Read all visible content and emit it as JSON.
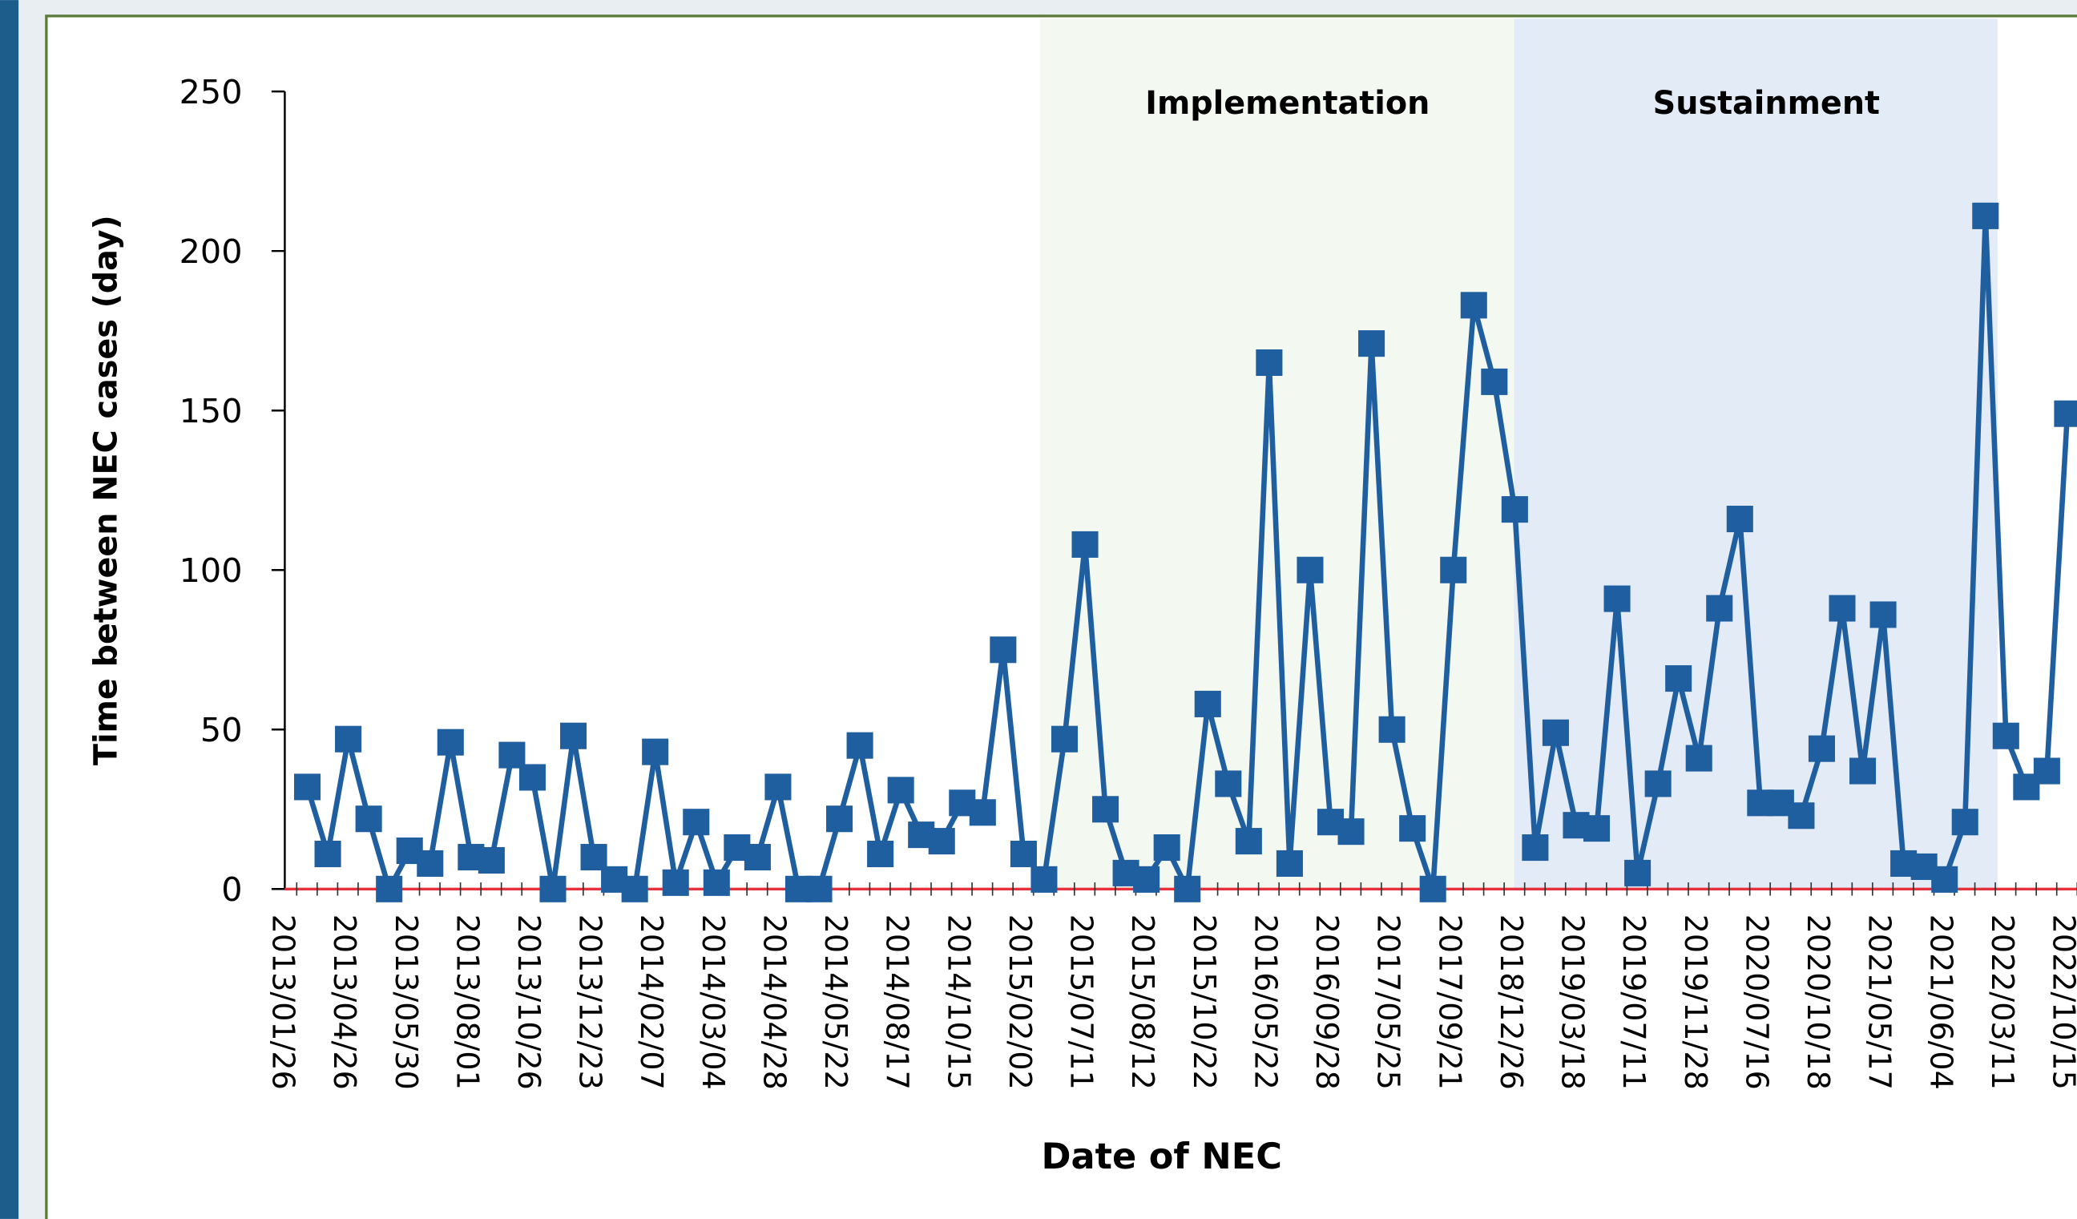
{
  "chart_data": {
    "type": "line",
    "y_label": "Time between NEC cases (day)",
    "x_label": "Date of NEC",
    "phases": [
      "Implementation",
      "Sustainment"
    ],
    "categories": [
      "2013/01/26",
      null,
      null,
      "2013/04/26",
      null,
      null,
      "2013/05/30",
      null,
      null,
      "2013/08/01",
      null,
      null,
      "2013/10/26",
      null,
      null,
      "2013/12/23",
      null,
      null,
      "2014/02/07",
      null,
      null,
      "2014/03/04",
      null,
      null,
      "2014/04/28",
      null,
      null,
      "2014/05/22",
      null,
      null,
      "2014/08/17",
      null,
      null,
      "2014/10/15",
      null,
      null,
      "2015/02/02",
      null,
      null,
      "2015/07/11",
      null,
      null,
      "2015/08/12",
      null,
      null,
      "2015/10/22",
      null,
      null,
      "2016/05/22",
      null,
      null,
      "2016/09/28",
      null,
      null,
      "2017/05/25",
      null,
      null,
      "2017/09/21",
      null,
      null,
      "2018/12/26",
      null,
      null,
      "2019/03/18",
      null,
      null,
      "2019/07/11",
      null,
      null,
      "2019/11/28",
      null,
      null,
      "2020/07/16",
      null,
      null,
      "2020/10/18",
      null,
      null,
      "2021/05/17",
      null,
      null,
      "2021/06/04",
      null,
      null,
      "2022/03/11",
      null,
      null,
      "2022/10/15"
    ],
    "series": [
      {
        "name": "Time between NEC cases",
        "color": "#1f5fa0",
        "values": [
          32,
          11,
          47,
          22,
          0,
          12,
          8,
          46,
          10,
          9,
          42,
          35,
          0,
          48,
          10,
          3,
          0,
          43,
          2,
          21,
          2,
          13,
          10,
          32,
          0,
          0,
          22,
          45,
          11,
          31,
          17,
          15,
          27,
          24,
          75,
          11,
          3,
          47,
          108,
          25,
          5,
          3,
          13,
          0,
          58,
          33,
          15,
          165,
          8,
          100,
          21,
          18,
          171,
          50,
          19,
          0,
          100,
          183,
          159,
          119,
          13,
          49,
          20,
          19,
          91,
          5,
          33,
          66,
          41,
          88,
          116,
          27,
          27,
          23,
          44,
          88,
          37,
          86,
          8,
          7,
          3,
          21,
          211,
          48,
          32,
          37,
          149,
          null
        ]
      }
    ],
    "ylim": [
      0,
      250
    ],
    "yticks": [
      0,
      50,
      100,
      150,
      200,
      250
    ],
    "phase_colors": [
      "#f3f8f1",
      "#e3ebf7"
    ],
    "baseline_color": "#e8303a"
  }
}
